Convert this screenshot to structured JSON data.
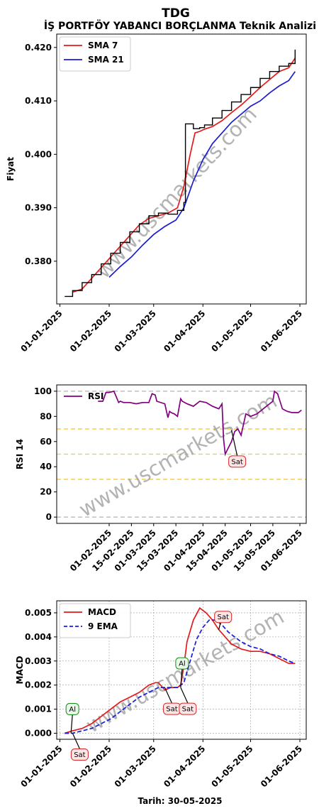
{
  "header": {
    "title": "TDG",
    "subtitle": "İŞ PORTFÖY YABANCI BORÇLANMA Teknik Analizi"
  },
  "footer": {
    "date_label": "Tarih: 30-05-2025"
  },
  "watermark": "www.uscmarkets.com",
  "chart_data": [
    {
      "type": "line",
      "panel": "price",
      "ylabel": "Fiyat",
      "ylim": [
        0.372,
        0.4225
      ],
      "yticks": [
        "0.380",
        "0.390",
        "0.400",
        "0.410",
        "0.420"
      ],
      "yticks_values": [
        0.38,
        0.39,
        0.4,
        0.41,
        0.42
      ],
      "xticks": [
        "01-01-2025",
        "01-02-2025",
        "01-03-2025",
        "01-04-2025",
        "01-05-2025",
        "01-06-2025"
      ],
      "xticks_day": [
        0,
        31,
        59,
        90,
        120,
        151
      ],
      "x_start": "2025-01-03",
      "x_end": "2025-05-30",
      "grid": false,
      "legend": "top-left",
      "colors": {
        "sma7": "#e41a1c",
        "sma21": "#1c1cd1",
        "price": "#000000"
      },
      "series": [
        {
          "name": "SMA 7",
          "x": [
            8,
            14,
            20,
            26,
            32,
            38,
            44,
            50,
            56,
            62,
            68,
            74,
            78,
            82,
            85,
            88,
            91,
            96,
            102,
            108,
            114,
            120,
            126,
            132,
            138,
            144,
            148
          ],
          "values": [
            0.3742,
            0.3748,
            0.3768,
            0.3788,
            0.3808,
            0.3828,
            0.3848,
            0.3868,
            0.388,
            0.3885,
            0.389,
            0.39,
            0.394,
            0.4,
            0.404,
            0.4043,
            0.4047,
            0.4052,
            0.4063,
            0.4078,
            0.4092,
            0.4108,
            0.4125,
            0.414,
            0.4155,
            0.4162,
            0.418
          ]
        },
        {
          "name": "SMA 21",
          "x": [
            31,
            38,
            45,
            52,
            59,
            66,
            73,
            78,
            84,
            90,
            96,
            102,
            108,
            114,
            120,
            126,
            132,
            138,
            144,
            148
          ],
          "values": [
            0.377,
            0.379,
            0.3808,
            0.383,
            0.385,
            0.3865,
            0.3877,
            0.39,
            0.395,
            0.399,
            0.402,
            0.404,
            0.406,
            0.4075,
            0.409,
            0.41,
            0.4115,
            0.4128,
            0.4138,
            0.4155
          ]
        },
        {
          "name": "Fiyat",
          "x": [
            3,
            8,
            14,
            20,
            26,
            32,
            38,
            44,
            50,
            56,
            62,
            68,
            74,
            78,
            79,
            84,
            88,
            91,
            96,
            102,
            108,
            114,
            120,
            126,
            132,
            138,
            144,
            148
          ],
          "values": [
            0.3734,
            0.3745,
            0.376,
            0.3775,
            0.3795,
            0.3815,
            0.3835,
            0.3855,
            0.387,
            0.3885,
            0.389,
            0.3888,
            0.3895,
            0.391,
            0.4057,
            0.4048,
            0.405,
            0.4055,
            0.4068,
            0.4082,
            0.4098,
            0.4112,
            0.4125,
            0.4142,
            0.4155,
            0.4165,
            0.417,
            0.4196
          ]
        }
      ]
    },
    {
      "type": "line",
      "panel": "rsi",
      "ylabel": "RSI 14",
      "ylim": [
        -5,
        105
      ],
      "yticks": [
        "0",
        "20",
        "40",
        "60",
        "80",
        "100"
      ],
      "yticks_values": [
        0,
        20,
        40,
        60,
        80,
        100
      ],
      "hlines": [
        {
          "y": 0,
          "color": "#b3b3b3"
        },
        {
          "y": 30,
          "color": "#f5c842"
        },
        {
          "y": 50,
          "color": "#f5c842"
        },
        {
          "y": 70,
          "color": "#f5c842"
        },
        {
          "y": 100,
          "color": "#b3b3b3"
        }
      ],
      "xticks": [
        "01-02-2025",
        "15-02-2025",
        "01-03-2025",
        "15-03-2025",
        "01-04-2025",
        "15-04-2025",
        "01-05-2025",
        "15-05-2025",
        "01-06-2025"
      ],
      "xticks_day": [
        31,
        45,
        59,
        73,
        90,
        104,
        120,
        134,
        151
      ],
      "grid": false,
      "legend": "top-left",
      "series": [
        {
          "name": "RSI",
          "color": "#800080",
          "x": [
            24,
            27,
            29,
            31,
            34,
            37,
            38,
            40,
            44,
            48,
            52,
            56,
            58,
            60,
            61,
            66,
            68,
            69,
            70,
            72,
            74,
            76,
            77,
            80,
            84,
            88,
            92,
            96,
            100,
            102,
            103,
            104,
            106,
            108,
            110,
            112,
            114,
            117,
            120,
            124,
            130,
            134,
            135,
            137,
            140,
            143,
            146,
            150,
            152
          ],
          "values": [
            92,
            92,
            99,
            99,
            100,
            91,
            92,
            91,
            91,
            90,
            91,
            91,
            98,
            97,
            92,
            90,
            79,
            84,
            83,
            82,
            80,
            94,
            92,
            90,
            88,
            92,
            91,
            88,
            86,
            90,
            62,
            50,
            55,
            60,
            68,
            70,
            65,
            82,
            80,
            82,
            88,
            92,
            100,
            98,
            86,
            84,
            83,
            83,
            85
          ]
        }
      ],
      "annotations": [
        {
          "text": "Sat",
          "x": 108,
          "y": 69
        }
      ]
    },
    {
      "type": "line",
      "panel": "macd",
      "ylabel": "MACD",
      "ylim": [
        -0.00025,
        0.0055
      ],
      "yticks": [
        "0.000",
        "0.001",
        "0.002",
        "0.003",
        "0.004",
        "0.005"
      ],
      "yticks_values": [
        0.0,
        0.001,
        0.002,
        0.003,
        0.004,
        0.005
      ],
      "xticks": [
        "01-01-2025",
        "01-02-2025",
        "01-03-2025",
        "01-04-2025",
        "01-05-2025",
        "01-06-2025"
      ],
      "xticks_day": [
        0,
        31,
        59,
        90,
        120,
        151
      ],
      "grid": true,
      "legend": "top-left",
      "series": [
        {
          "name": "MACD",
          "color": "#e41a1c",
          "x": [
            3,
            8,
            14,
            20,
            26,
            32,
            38,
            44,
            50,
            56,
            60,
            62,
            66,
            70,
            74,
            76,
            78,
            80,
            84,
            88,
            90,
            92,
            96,
            100,
            104,
            108,
            114,
            120,
            126,
            132,
            138,
            144,
            148
          ],
          "values": [
            0.0,
            0.0001,
            0.0002,
            0.0004,
            0.0007,
            0.001,
            0.0013,
            0.0015,
            0.0017,
            0.002,
            0.0021,
            0.0021,
            0.0018,
            0.0019,
            0.0019,
            0.002,
            0.0028,
            0.0038,
            0.0047,
            0.0052,
            0.0051,
            0.005,
            0.0047,
            0.0043,
            0.004,
            0.0037,
            0.0035,
            0.0034,
            0.0034,
            0.0033,
            0.0031,
            0.0029,
            0.0029
          ]
        },
        {
          "name": "9 EMA",
          "color": "#1a1adc",
          "dash": true,
          "x": [
            3,
            8,
            14,
            20,
            26,
            32,
            38,
            44,
            50,
            56,
            62,
            68,
            74,
            78,
            82,
            86,
            90,
            94,
            98,
            102,
            106,
            110,
            114,
            120,
            126,
            132,
            138,
            144,
            148
          ],
          "values": [
            0.0,
            0.0,
            0.0001,
            0.0002,
            0.0004,
            0.0006,
            0.0009,
            0.0012,
            0.0015,
            0.0017,
            0.0019,
            0.0019,
            0.0019,
            0.0021,
            0.003,
            0.0039,
            0.0044,
            0.0047,
            0.0047,
            0.0045,
            0.0042,
            0.004,
            0.0038,
            0.0036,
            0.0035,
            0.0033,
            0.0032,
            0.003,
            0.0029
          ]
        }
      ],
      "annotations": [
        {
          "text": "Al",
          "x": 7,
          "y": 0.0,
          "side": "above"
        },
        {
          "text": "Sat",
          "x": 8,
          "y": 0.0,
          "side": "below"
        },
        {
          "text": "Sat",
          "x": 66,
          "y": 0.0019,
          "side": "below"
        },
        {
          "text": "Sat",
          "x": 76,
          "y": 0.0019,
          "side": "below"
        },
        {
          "text": "Al",
          "x": 76,
          "y": 0.0019,
          "side": "above"
        },
        {
          "text": "Sat",
          "x": 100,
          "y": 0.0043,
          "side": "below"
        }
      ]
    }
  ]
}
